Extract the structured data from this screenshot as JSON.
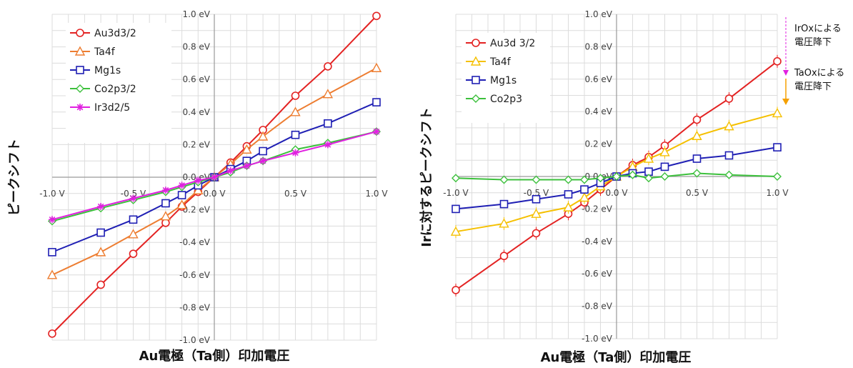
{
  "chart_data": [
    {
      "type": "line",
      "title": "",
      "xlabel": "Au電極（Ta側）印加電圧",
      "ylabel": "ピークシフト",
      "xlim": [
        -1.0,
        1.0
      ],
      "ylim": [
        -1.0,
        1.0
      ],
      "x_ticks": [
        "-1.0 V",
        "-0.5 V",
        "0.0 V",
        "0.5 V",
        "1.0 V"
      ],
      "y_ticks": [
        "1.0 eV",
        "0.8 eV",
        "0.6 eV",
        "0.4 eV",
        "0.2 eV",
        "0.0 eV",
        "-0.2 eV",
        "-0.4 eV",
        "-0.6 eV",
        "-0.8 eV",
        "-1.0 eV"
      ],
      "grid": true,
      "legend_position": "top-left",
      "x": [
        -1.0,
        -0.7,
        -0.5,
        -0.3,
        -0.2,
        -0.1,
        0.0,
        0.1,
        0.2,
        0.3,
        0.5,
        0.7,
        1.0
      ],
      "series": [
        {
          "name": "Au3d3/2",
          "color": "#e32222",
          "marker": "circle",
          "values": [
            -0.96,
            -0.66,
            -0.47,
            -0.28,
            -0.18,
            -0.09,
            0.0,
            0.09,
            0.19,
            0.29,
            0.5,
            0.68,
            0.99
          ]
        },
        {
          "name": "Ta4f",
          "color": "#ed7d31",
          "marker": "triangle",
          "values": [
            -0.6,
            -0.46,
            -0.35,
            -0.24,
            -0.17,
            -0.08,
            0.0,
            0.08,
            0.17,
            0.25,
            0.4,
            0.51,
            0.67
          ]
        },
        {
          "name": "Mg1s",
          "color": "#1f1fb4",
          "marker": "square",
          "values": [
            -0.46,
            -0.34,
            -0.26,
            -0.16,
            -0.11,
            -0.05,
            0.0,
            0.05,
            0.1,
            0.16,
            0.26,
            0.33,
            0.46
          ]
        },
        {
          "name": "Co2p3/2",
          "color": "#3cc03c",
          "marker": "diamond",
          "values": [
            -0.27,
            -0.19,
            -0.14,
            -0.09,
            -0.06,
            -0.03,
            0.0,
            0.03,
            0.07,
            0.1,
            0.17,
            0.21,
            0.28
          ]
        },
        {
          "name": "Ir3d2/5",
          "color": "#e020e0",
          "marker": "star",
          "values": [
            -0.26,
            -0.18,
            -0.13,
            -0.08,
            -0.05,
            -0.02,
            0.0,
            0.04,
            0.07,
            0.1,
            0.15,
            0.2,
            0.28
          ]
        }
      ]
    },
    {
      "type": "line",
      "title": "",
      "xlabel": "Au電極（Ta側）印加電圧",
      "ylabel": "Irに対するピークシフト",
      "xlim": [
        -1.0,
        1.0
      ],
      "ylim": [
        -1.0,
        1.0
      ],
      "x_ticks": [
        "-1.0 V",
        "-0.5 V",
        "0.0 V",
        "0.5 V",
        "1.0 V"
      ],
      "y_ticks": [
        "1.0 eV",
        "0.8 eV",
        "0.6 eV",
        "0.4 eV",
        "0.2 eV",
        "0.0 eV",
        "-0.2 eV",
        "-0.4 eV",
        "-0.6 eV",
        "-0.8 eV",
        "-1.0 eV"
      ],
      "grid": true,
      "legend_position": "top-left",
      "error_bars": true,
      "x": [
        -1.0,
        -0.7,
        -0.5,
        -0.3,
        -0.2,
        -0.1,
        0.0,
        0.1,
        0.2,
        0.3,
        0.5,
        0.7,
        1.0
      ],
      "series": [
        {
          "name": "Au3d 3/2",
          "color": "#e32222",
          "marker": "circle",
          "values": [
            -0.7,
            -0.49,
            -0.35,
            -0.23,
            -0.16,
            -0.08,
            0.0,
            0.07,
            0.12,
            0.19,
            0.35,
            0.48,
            0.71
          ]
        },
        {
          "name": "Ta4f",
          "color": "#f5c000",
          "marker": "triangle",
          "values": [
            -0.34,
            -0.29,
            -0.23,
            -0.19,
            -0.13,
            -0.06,
            0.0,
            0.06,
            0.11,
            0.15,
            0.25,
            0.31,
            0.39
          ]
        },
        {
          "name": "Mg1s",
          "color": "#1f1fb4",
          "marker": "square",
          "values": [
            -0.2,
            -0.17,
            -0.14,
            -0.11,
            -0.08,
            -0.04,
            0.0,
            0.02,
            0.03,
            0.06,
            0.11,
            0.13,
            0.18
          ]
        },
        {
          "name": "Co2p3",
          "color": "#3cc03c",
          "marker": "diamond",
          "values": [
            -0.01,
            -0.02,
            -0.02,
            -0.02,
            -0.02,
            -0.01,
            0.0,
            0.01,
            -0.01,
            0.0,
            0.02,
            0.01,
            0.0
          ]
        }
      ],
      "annotations": [
        {
          "text": "IrOxによる",
          "color": "#e020e0"
        },
        {
          "text": "電圧降下",
          "color": "#e020e0"
        },
        {
          "text": "TaOxによる",
          "color": "#f5a000"
        },
        {
          "text": "電圧降下",
          "color": "#f5a000"
        }
      ]
    }
  ]
}
